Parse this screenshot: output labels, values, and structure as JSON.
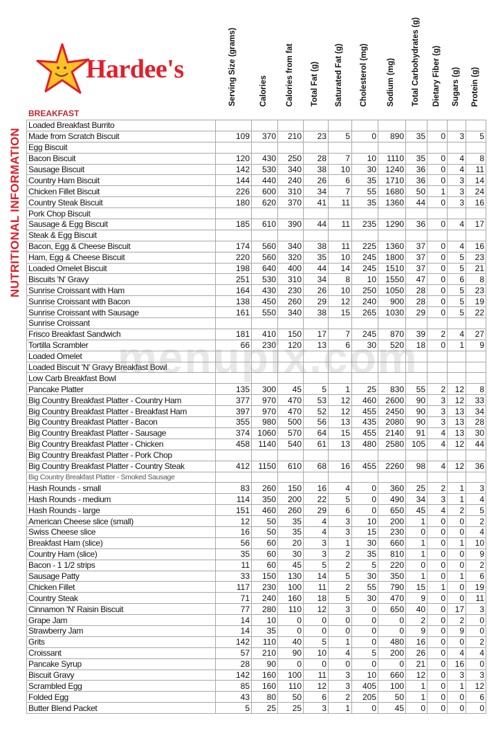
{
  "brand": {
    "name": "Hardee's",
    "star_color": "#f7c325",
    "text_color": "#e0202a"
  },
  "side_title": "NUTRITIONAL INFORMATION",
  "section": "BREAKFAST",
  "watermark": "menupix.com",
  "columns": [
    "Serving Size (grams)",
    "Calories",
    "Calories from fat",
    "Total Fat (g)",
    "Saturated Fat (g)",
    "Cholesterol (mg)",
    "Sodium (mg)",
    "Total Carbohydrates (g)",
    "Dietary Fiber (g)",
    "Sugars (g)",
    "Protein (g)"
  ],
  "rows": [
    {
      "name": "Loaded Breakfast Burrito",
      "values": []
    },
    {
      "name": "Made from Scratch Biscuit",
      "values": [
        "109",
        "370",
        "210",
        "23",
        "5",
        "0",
        "890",
        "35",
        "0",
        "3",
        "5"
      ]
    },
    {
      "name": "Egg Biscuit",
      "values": []
    },
    {
      "name": "Bacon Biscuit",
      "values": [
        "120",
        "430",
        "250",
        "28",
        "7",
        "10",
        "1110",
        "35",
        "0",
        "4",
        "8"
      ]
    },
    {
      "name": "Sausage Biscuit",
      "values": [
        "142",
        "530",
        "340",
        "38",
        "10",
        "30",
        "1240",
        "36",
        "0",
        "4",
        "11"
      ]
    },
    {
      "name": "Country Ham Biscuit",
      "values": [
        "144",
        "440",
        "240",
        "26",
        "6",
        "35",
        "1710",
        "36",
        "0",
        "3",
        "14"
      ]
    },
    {
      "name": "Chicken Fillet Biscuit",
      "values": [
        "226",
        "600",
        "310",
        "34",
        "7",
        "55",
        "1680",
        "50",
        "1",
        "3",
        "24"
      ]
    },
    {
      "name": "Country Steak Biscuit",
      "values": [
        "180",
        "620",
        "370",
        "41",
        "11",
        "35",
        "1360",
        "44",
        "0",
        "3",
        "16"
      ]
    },
    {
      "name": "Pork Chop Biscuit",
      "values": []
    },
    {
      "name": "Sausage & Egg Biscuit",
      "values": [
        "185",
        "610",
        "390",
        "44",
        "11",
        "235",
        "1290",
        "36",
        "0",
        "4",
        "17"
      ]
    },
    {
      "name": "Steak & Egg Biscuit",
      "values": []
    },
    {
      "name": "Bacon, Egg & Cheese Biscuit",
      "values": [
        "174",
        "560",
        "340",
        "38",
        "11",
        "225",
        "1360",
        "37",
        "0",
        "4",
        "16"
      ]
    },
    {
      "name": "Ham, Egg & Cheese Biscuit",
      "values": [
        "220",
        "560",
        "320",
        "35",
        "10",
        "245",
        "1800",
        "37",
        "0",
        "5",
        "23"
      ]
    },
    {
      "name": "Loaded Omelet Biscuit",
      "values": [
        "198",
        "640",
        "400",
        "44",
        "14",
        "245",
        "1510",
        "37",
        "0",
        "5",
        "21"
      ]
    },
    {
      "name": "Biscuits 'N' Gravy",
      "values": [
        "251",
        "530",
        "310",
        "34",
        "8",
        "10",
        "1550",
        "47",
        "0",
        "6",
        "8"
      ]
    },
    {
      "name": "Sunrise Croissant with Ham",
      "values": [
        "164",
        "430",
        "230",
        "26",
        "10",
        "250",
        "1050",
        "28",
        "0",
        "5",
        "23"
      ]
    },
    {
      "name": "Sunrise Croissant with Bacon",
      "values": [
        "138",
        "450",
        "260",
        "29",
        "12",
        "240",
        "900",
        "28",
        "0",
        "5",
        "19"
      ]
    },
    {
      "name": "Sunrise Croissant with Sausage",
      "values": [
        "161",
        "550",
        "340",
        "38",
        "15",
        "265",
        "1030",
        "29",
        "0",
        "5",
        "22"
      ]
    },
    {
      "name": "Sunrise Croissant",
      "values": []
    },
    {
      "name": "Frisco Breakfast Sandwich",
      "values": [
        "181",
        "410",
        "150",
        "17",
        "7",
        "245",
        "870",
        "39",
        "2",
        "4",
        "27"
      ]
    },
    {
      "name": "Tortilla Scrambler",
      "values": [
        "66",
        "230",
        "120",
        "13",
        "6",
        "30",
        "520",
        "18",
        "0",
        "1",
        "9"
      ]
    },
    {
      "name": "Loaded Omelet",
      "values": []
    },
    {
      "name": "Loaded Biscuit 'N' Gravy Breakfast Bowl",
      "values": []
    },
    {
      "name": "Low Carb Breakfast Bowl",
      "values": []
    },
    {
      "name": "Pancake Platter",
      "values": [
        "135",
        "300",
        "45",
        "5",
        "1",
        "25",
        "830",
        "55",
        "2",
        "12",
        "8"
      ]
    },
    {
      "name": "Big Country Breakfast Platter - Country Ham",
      "values": [
        "377",
        "970",
        "470",
        "53",
        "12",
        "460",
        "2600",
        "90",
        "3",
        "12",
        "33"
      ]
    },
    {
      "name": "Big Country Breakfast Platter - Breakfast Ham",
      "values": [
        "397",
        "970",
        "470",
        "52",
        "12",
        "455",
        "2450",
        "90",
        "3",
        "13",
        "34"
      ]
    },
    {
      "name": "Big Country Breakfast Platter - Bacon",
      "values": [
        "355",
        "980",
        "500",
        "56",
        "13",
        "435",
        "2080",
        "90",
        "3",
        "13",
        "28"
      ]
    },
    {
      "name": "Big Country Breakfast Platter - Sausage",
      "values": [
        "374",
        "1060",
        "570",
        "64",
        "15",
        "455",
        "2140",
        "91",
        "4",
        "13",
        "30"
      ]
    },
    {
      "name": "Big Country Breakfast Platter - Chicken",
      "values": [
        "458",
        "1140",
        "540",
        "61",
        "13",
        "480",
        "2580",
        "105",
        "4",
        "12",
        "44"
      ]
    },
    {
      "name": "Big Country Breakfast Platter - Pork Chop",
      "values": []
    },
    {
      "name": "Big Country Breakfast Platter - Country Steak",
      "values": [
        "412",
        "1150",
        "610",
        "68",
        "16",
        "455",
        "2260",
        "98",
        "4",
        "12",
        "36"
      ]
    },
    {
      "name": "Big Country Breakfast Platter - Smoked Sausage",
      "values": [],
      "small": true
    },
    {
      "name": "Hash Rounds - small",
      "values": [
        "83",
        "260",
        "150",
        "16",
        "4",
        "0",
        "360",
        "25",
        "2",
        "1",
        "3"
      ]
    },
    {
      "name": "Hash Rounds - medium",
      "values": [
        "114",
        "350",
        "200",
        "22",
        "5",
        "0",
        "490",
        "34",
        "3",
        "1",
        "4"
      ]
    },
    {
      "name": "Hash Rounds - large",
      "values": [
        "151",
        "460",
        "260",
        "29",
        "6",
        "0",
        "650",
        "45",
        "4",
        "2",
        "5"
      ]
    },
    {
      "name": "American Cheese slice (small)",
      "values": [
        "12",
        "50",
        "35",
        "4",
        "3",
        "10",
        "200",
        "1",
        "0",
        "0",
        "2"
      ]
    },
    {
      "name": "Swiss Cheese slice",
      "values": [
        "16",
        "50",
        "35",
        "4",
        "3",
        "15",
        "230",
        "0",
        "0",
        "0",
        "4"
      ]
    },
    {
      "name": "Breakfast Ham (slice)",
      "values": [
        "56",
        "60",
        "20",
        "3",
        "1",
        "30",
        "660",
        "1",
        "0",
        "1",
        "10"
      ]
    },
    {
      "name": "Country Ham (slice)",
      "values": [
        "35",
        "60",
        "30",
        "3",
        "2",
        "35",
        "810",
        "1",
        "0",
        "0",
        "9"
      ]
    },
    {
      "name": "Bacon - 1 1/2 strips",
      "values": [
        "11",
        "60",
        "45",
        "5",
        "2",
        "5",
        "220",
        "0",
        "0",
        "0",
        "2"
      ]
    },
    {
      "name": "Sausage Patty",
      "values": [
        "33",
        "150",
        "130",
        "14",
        "5",
        "30",
        "350",
        "1",
        "0",
        "1",
        "6"
      ]
    },
    {
      "name": "Chicken Fillet",
      "values": [
        "117",
        "230",
        "100",
        "11",
        "2",
        "55",
        "790",
        "15",
        "1",
        "0",
        "19"
      ]
    },
    {
      "name": "Country Steak",
      "values": [
        "71",
        "240",
        "160",
        "18",
        "5",
        "30",
        "470",
        "9",
        "0",
        "0",
        "11"
      ]
    },
    {
      "name": "Cinnamon 'N' Raisin Biscuit",
      "values": [
        "77",
        "280",
        "110",
        "12",
        "3",
        "0",
        "650",
        "40",
        "0",
        "17",
        "3"
      ]
    },
    {
      "name": "Grape Jam",
      "values": [
        "14",
        "10",
        "0",
        "0",
        "0",
        "0",
        "0",
        "2",
        "0",
        "2",
        "0"
      ]
    },
    {
      "name": "Strawberry Jam",
      "values": [
        "14",
        "35",
        "0",
        "0",
        "0",
        "0",
        "0",
        "9",
        "0",
        "9",
        "0"
      ]
    },
    {
      "name": "Grits",
      "values": [
        "142",
        "110",
        "40",
        "5",
        "1",
        "0",
        "480",
        "16",
        "0",
        "0",
        "2"
      ]
    },
    {
      "name": "Croissant",
      "values": [
        "57",
        "210",
        "90",
        "10",
        "4",
        "5",
        "200",
        "26",
        "0",
        "4",
        "4"
      ]
    },
    {
      "name": "Pancake Syrup",
      "values": [
        "28",
        "90",
        "0",
        "0",
        "0",
        "0",
        "0",
        "21",
        "0",
        "16",
        "0"
      ]
    },
    {
      "name": "Biscuit Gravy",
      "values": [
        "142",
        "160",
        "100",
        "11",
        "3",
        "10",
        "660",
        "12",
        "0",
        "3",
        "3"
      ]
    },
    {
      "name": "Scrambled Egg",
      "values": [
        "85",
        "160",
        "110",
        "12",
        "3",
        "405",
        "100",
        "1",
        "0",
        "1",
        "12"
      ]
    },
    {
      "name": "Folded Egg",
      "values": [
        "43",
        "80",
        "50",
        "6",
        "2",
        "205",
        "50",
        "1",
        "0",
        "0",
        "6"
      ]
    },
    {
      "name": "Butter Blend Packet",
      "values": [
        "5",
        "25",
        "25",
        "3",
        "1",
        "0",
        "45",
        "0",
        "0",
        "0",
        "0"
      ]
    }
  ]
}
